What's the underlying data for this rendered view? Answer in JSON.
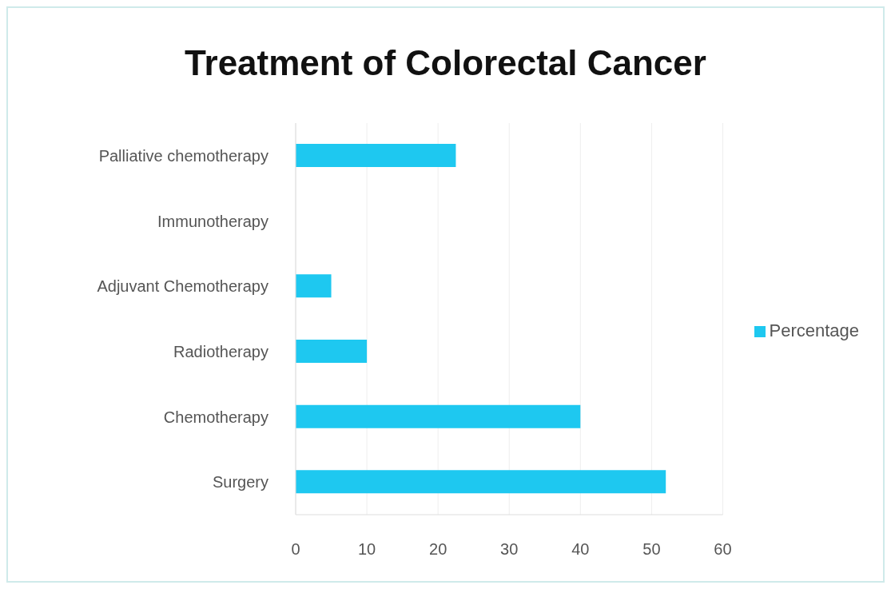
{
  "chart_data": {
    "type": "bar",
    "orientation": "horizontal",
    "title": "Treatment of Colorectal Cancer",
    "categories": [
      "Palliative chemotherapy",
      "Immunotherapy",
      "Adjuvant Chemotherapy",
      "Radiotherapy",
      "Chemotherapy",
      "Surgery"
    ],
    "series": [
      {
        "name": "Percentage",
        "color": "#1ec8f0",
        "values": [
          22.5,
          0,
          5,
          10,
          40,
          52
        ]
      }
    ],
    "xlim": [
      0,
      60
    ],
    "xticks": [
      0,
      10,
      20,
      30,
      40,
      50,
      60
    ],
    "grid": "x",
    "legend": "right"
  }
}
